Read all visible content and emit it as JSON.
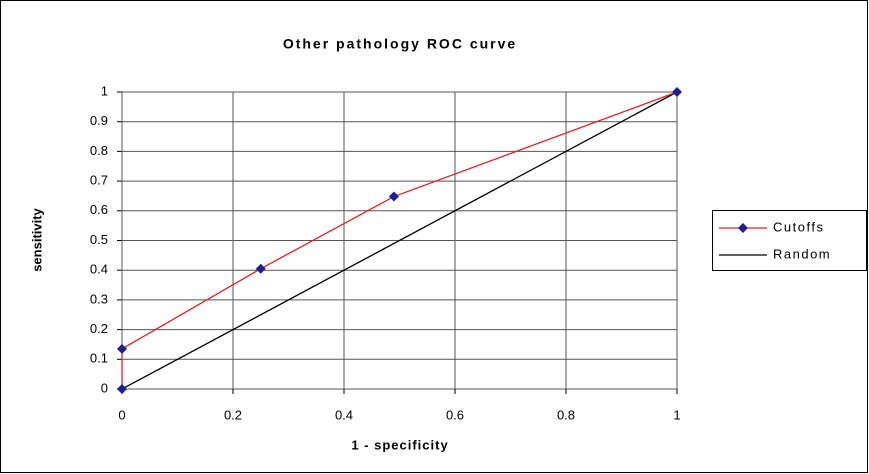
{
  "chart_data": {
    "type": "line",
    "title": "Other pathology ROC curve",
    "xlabel": "1 - specificity",
    "ylabel": "sensitivity",
    "series": [
      {
        "name": "Cutoffs",
        "color": "#e0202a",
        "marker": "diamond",
        "marker_color": "#1f1f8f",
        "x": [
          0,
          0,
          0.25,
          0.49,
          1
        ],
        "values": [
          0,
          0.135,
          0.405,
          0.648,
          1
        ]
      },
      {
        "name": "Random",
        "color": "#000000",
        "x": [
          0,
          1
        ],
        "values": [
          0,
          1
        ]
      }
    ],
    "xlim": [
      0,
      1
    ],
    "xticks": [
      0,
      0.2,
      0.4,
      0.6,
      0.8,
      1
    ],
    "ylim": [
      0,
      1
    ],
    "yticks": [
      0,
      0.1,
      0.2,
      0.3,
      0.4,
      0.5,
      0.6,
      0.7,
      0.8,
      0.9,
      1
    ],
    "grid": true,
    "legend": "right"
  }
}
